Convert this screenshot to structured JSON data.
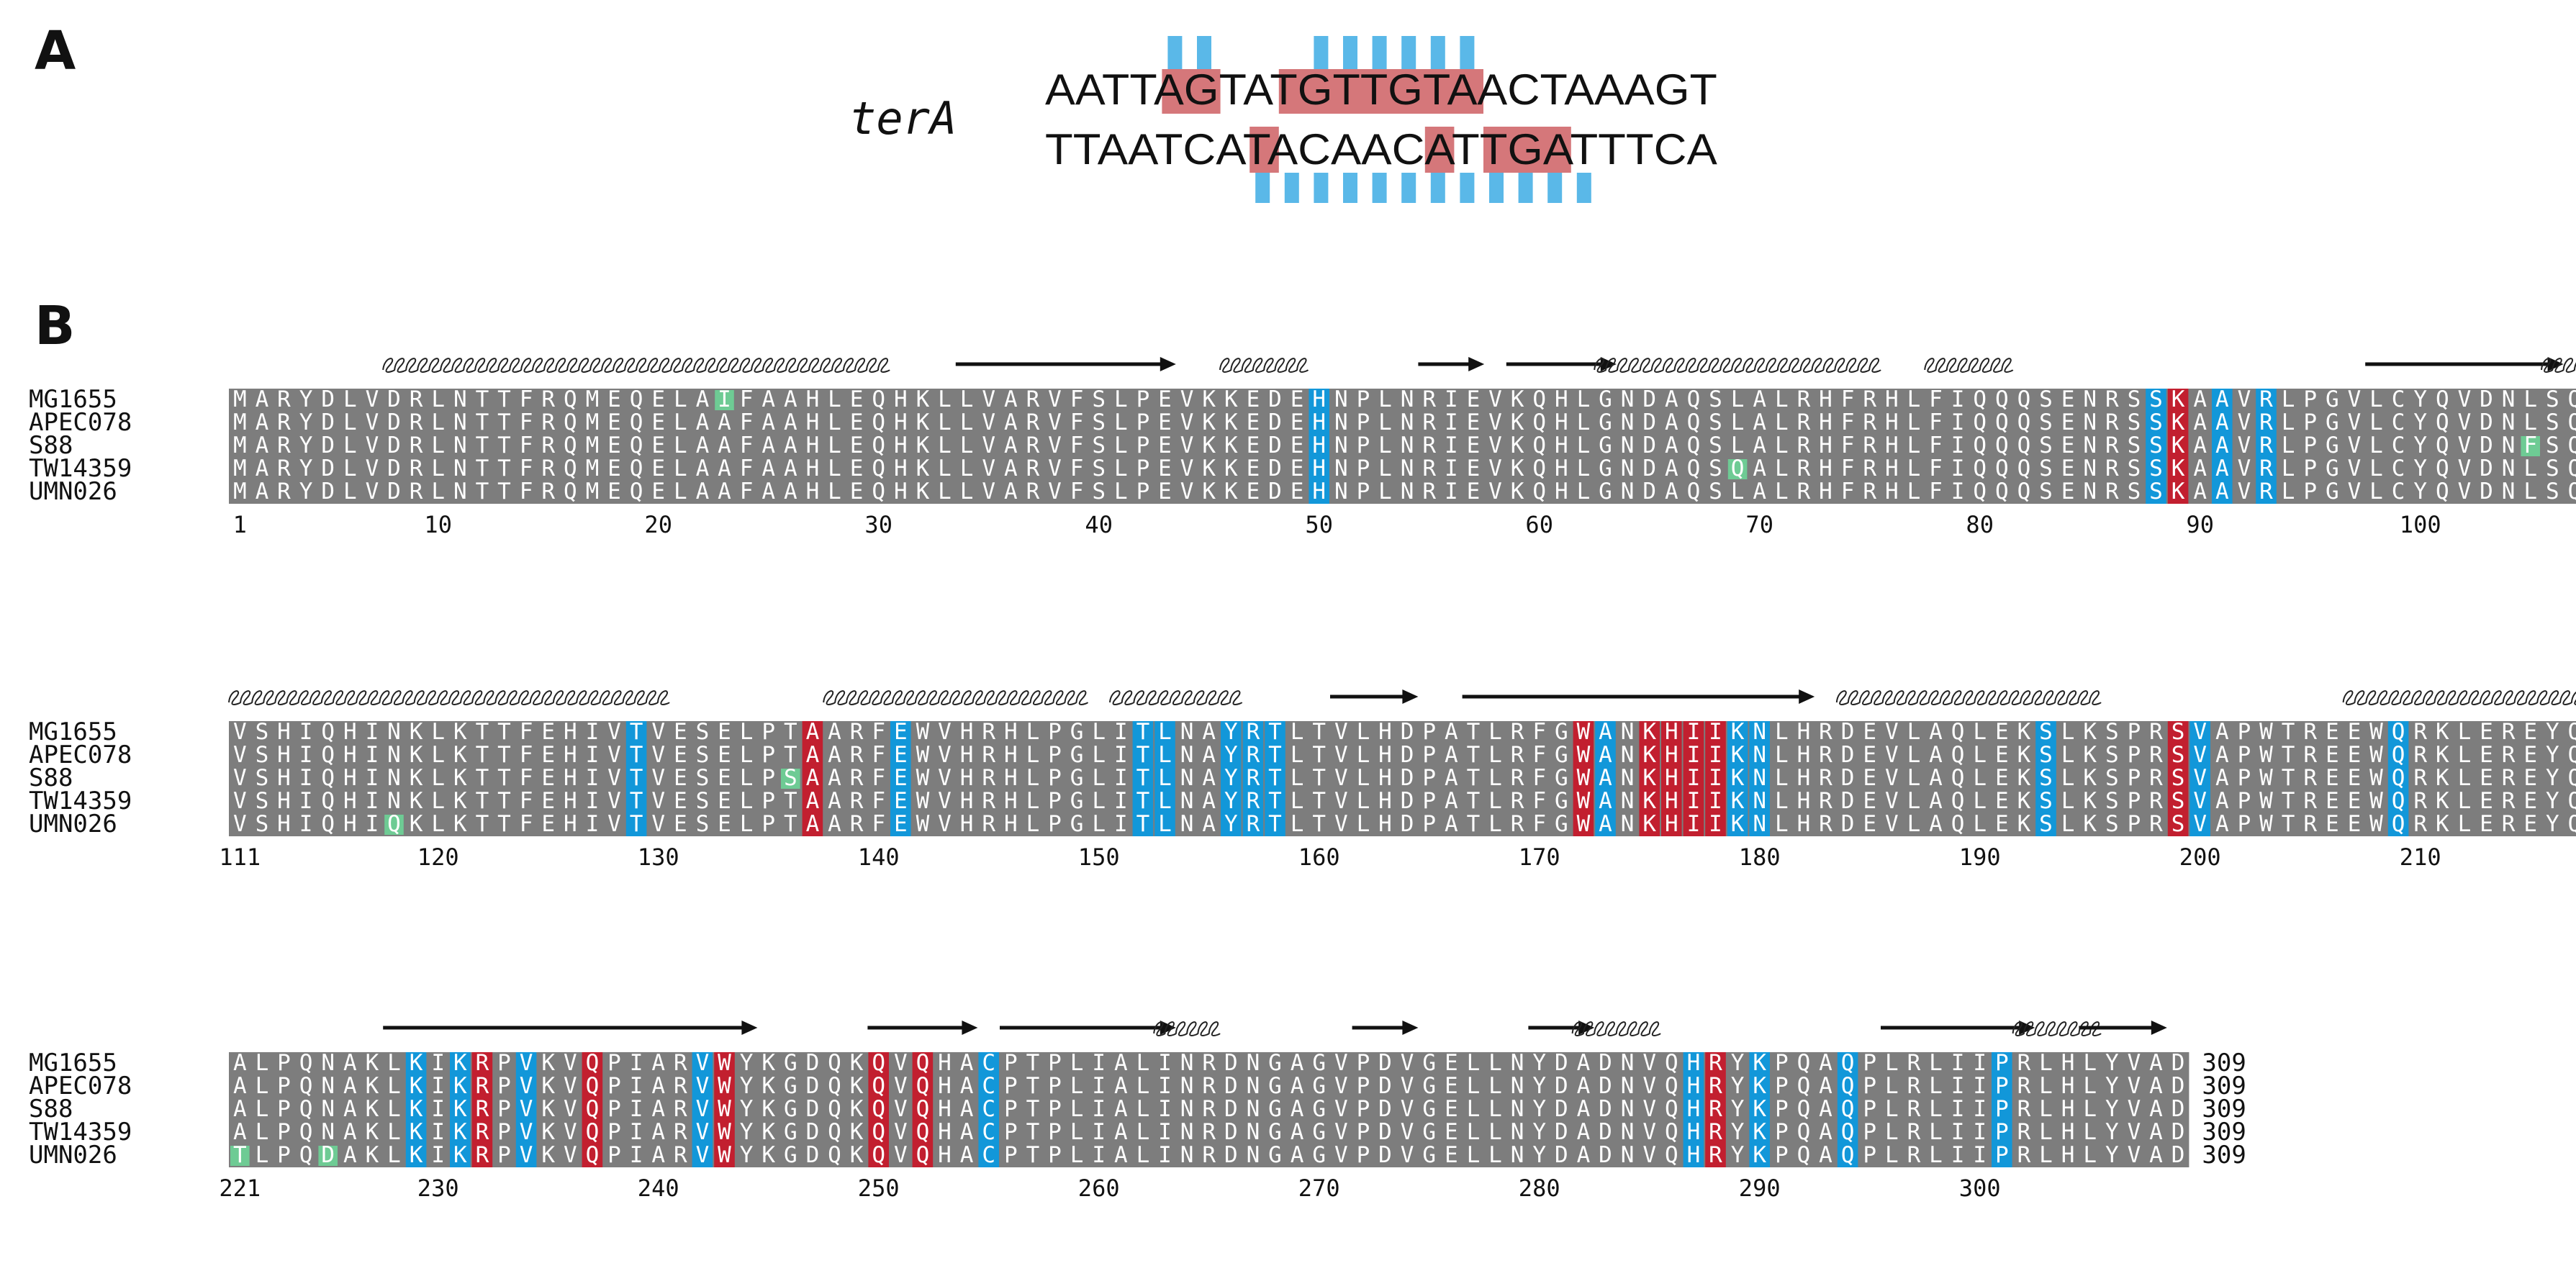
{
  "panel_a": {
    "label": "A",
    "gene_label": "terA",
    "top_strand": "AATTAGTATGTTGTAACTAAAGT",
    "bottom_strand": "TTAATCATACAACATTGATTTCA",
    "top_highlight_ranges": [
      [
        4,
        6
      ],
      [
        8,
        15
      ]
    ],
    "bottom_highlight_ranges": [
      [
        7,
        8
      ],
      [
        13,
        14
      ],
      [
        15,
        18
      ]
    ],
    "top_bar_positions": [
      4,
      5,
      9,
      10,
      11,
      12,
      13,
      14
    ],
    "bottom_bar_positions": [
      7,
      8,
      9,
      10,
      11,
      12,
      13,
      14,
      15,
      16,
      17,
      18
    ],
    "colors": {
      "highlight": "#d5777a",
      "bar": "#5ab8e8"
    }
  },
  "panel_b": {
    "label": "B",
    "colors": {
      "background": "#7d7d7d",
      "conserved_blue": "#1297d9",
      "conserved_red": "#c21f2f",
      "variant_green": "#6ecb94",
      "residue_text": "#ffffff",
      "variant_text": "#1a5a34"
    },
    "blocks": [
      {
        "start": 1,
        "end_label": "110",
        "ruler": [
          "1",
          "10",
          "20",
          "30",
          "40",
          "50",
          "60",
          "70",
          "80",
          "90",
          "100"
        ],
        "secondary_structure": [
          {
            "type": "helix",
            "from": 8,
            "to": 30
          },
          {
            "type": "strand",
            "from": 34,
            "to": 43
          },
          {
            "type": "helix",
            "from": 46,
            "to": 49
          },
          {
            "type": "strand",
            "from": 55,
            "to": 57
          },
          {
            "type": "strand",
            "from": 59,
            "to": 63
          },
          {
            "type": "helix",
            "from": 63,
            "to": 75
          },
          {
            "type": "helix",
            "from": 78,
            "to": 81
          },
          {
            "type": "strand",
            "from": 98,
            "to": 106
          },
          {
            "type": "helix",
            "from": 106,
            "to": 110
          }
        ],
        "columns": [
          {
            "pos": 50,
            "color": "blue"
          },
          {
            "pos": 88,
            "color": "blue"
          },
          {
            "pos": 89,
            "color": "red"
          },
          {
            "pos": 91,
            "color": "blue"
          },
          {
            "pos": 93,
            "color": "blue"
          }
        ],
        "sequences": [
          {
            "name": "MG1655",
            "residues": "MARYDLVDRLNTTFRQMEQELAIFAAHLEQHKLLVARVFSLPEVKKEDEHNPLNRIEVKQHLGNDAQSLALRHFRHLFIQQQSENRSSKAAVRLPGVLCYQVDNLSQAAL",
            "variants": [
              23
            ]
          },
          {
            "name": "APEC078",
            "residues": "MARYDLVDRLNTTFRQMEQELAAFAAHLEQHKLLVARVFSLPEVKKEDEHNPLNRIEVKQHLGNDAQSLALRHFRHLFIQQQSENRSSKAAVRLPGVLCYQVDNLSQAAL",
            "variants": []
          },
          {
            "name": "S88",
            "residues": "MARYDLVDRLNTTFRQMEQELAAFAAHLEQHKLLVARVFSLPEVKKEDEHNPLNRIEVKQHLGNDAQSLALRHFRHLFIQQQSENRSSKAAVRLPGVLCYQVDNFSQAAL",
            "variants": [
              105
            ]
          },
          {
            "name": "TW14359",
            "residues": "MARYDLVDRLNTTFRQMEQELAAFAAHLEQHKLLVARVFSLPEVKKEDEHNPLNRIEVKQHLGNDAQSQALRHFRHLFIQQQSENRSSKAAVRLPGVLCYQVDNLSQAAL",
            "variants": [
              69
            ]
          },
          {
            "name": "UMN026",
            "residues": "MARYDLVDRLNTTFRQMEQELAAFAAHLEQHKLLVARVFSLPEVKKEDEHNPLNRIEVKQHLGNDAQSLALRHFRHLFIQQQSENRSSKAAVRLPGVLCYQVDNLSQAAL",
            "variants": []
          }
        ]
      },
      {
        "start": 111,
        "end_label": "220",
        "ruler": [
          "111",
          "120",
          "130",
          "140",
          "150",
          "160",
          "170",
          "180",
          "190",
          "200",
          "210"
        ],
        "secondary_structure": [
          {
            "type": "helix",
            "from": 111,
            "to": 130
          },
          {
            "type": "helix",
            "from": 138,
            "to": 149
          },
          {
            "type": "helix",
            "from": 151,
            "to": 156
          },
          {
            "type": "strand",
            "from": 161,
            "to": 164
          },
          {
            "type": "strand",
            "from": 167,
            "to": 182
          },
          {
            "type": "helix",
            "from": 184,
            "to": 195
          },
          {
            "type": "helix",
            "from": 207,
            "to": 220
          }
        ],
        "columns": [
          {
            "pos": 129,
            "color": "blue"
          },
          {
            "pos": 137,
            "color": "red"
          },
          {
            "pos": 141,
            "color": "blue"
          },
          {
            "pos": 152,
            "color": "blue"
          },
          {
            "pos": 153,
            "color": "blue"
          },
          {
            "pos": 156,
            "color": "blue"
          },
          {
            "pos": 157,
            "color": "blue"
          },
          {
            "pos": 158,
            "color": "blue"
          },
          {
            "pos": 172,
            "color": "red"
          },
          {
            "pos": 173,
            "color": "blue"
          },
          {
            "pos": 175,
            "color": "red"
          },
          {
            "pos": 176,
            "color": "red"
          },
          {
            "pos": 177,
            "color": "red"
          },
          {
            "pos": 178,
            "color": "red"
          },
          {
            "pos": 179,
            "color": "blue"
          },
          {
            "pos": 180,
            "color": "blue"
          },
          {
            "pos": 193,
            "color": "blue"
          },
          {
            "pos": 199,
            "color": "red"
          },
          {
            "pos": 200,
            "color": "blue"
          },
          {
            "pos": 209,
            "color": "blue"
          }
        ],
        "sequences": [
          {
            "name": "MG1655",
            "residues": "VSHIQHINKLKTTFEHIVTVESELPTAARFEWVHRHLPGLITLNAYRTLTVLHDPATLRFGWANKHIIKNLHRDEVLAQLEKSLKSPRSVAPWTREEWQRKLEREYQDIA",
            "variants": []
          },
          {
            "name": "APEC078",
            "residues": "VSHIQHINKLKTTFEHIVTVESELPTAARFEWVHRHLPGLITLNAYRTLTVLHDPATLRFGWANKHIIKNLHRDEVLAQLEKSLKSPRSVAPWTREEWQRKLEREYQDIA",
            "variants": []
          },
          {
            "name": "S88",
            "residues": "VSHIQHINKLKTTFEHIVTVESELPSAARFEWVHRHLPGLITLNAYRTLTVLHDPATLRFGWANKHIIKNLHRDEVLAQLEKSLKSPRSVAPWTREEWQRKLEREYQDIA",
            "variants": [
              136
            ]
          },
          {
            "name": "TW14359",
            "residues": "VSHIQHINKLKTTFEHIVTVESELPTAARFEWVHRHLPGLITLNAYRTLTVLHDPATLRFGWANKHIIKNLHRDEVLAQLEKSLKSPRSVAPWTREEWQRKLEREYQDIA",
            "variants": []
          },
          {
            "name": "UMN026",
            "residues": "VSHIQHIQKLKTTFEHIVTVESELPTAARFEWVHRHLPGLITLNAYRTLTVLHDPATLRFGWANKHIIKNLHRDEVLAQLEKSLKSPRSVAPWTREEWQRKLEREYQDIA",
            "variants": [
              118
            ]
          }
        ]
      },
      {
        "start": 221,
        "end_label": "309",
        "ruler": [
          "221",
          "230",
          "240",
          "250",
          "260",
          "270",
          "280",
          "290",
          "300"
        ],
        "secondary_structure": [
          {
            "type": "strand",
            "from": 228,
            "to": 244
          },
          {
            "type": "strand",
            "from": 250,
            "to": 254
          },
          {
            "type": "strand",
            "from": 256,
            "to": 263
          },
          {
            "type": "helix",
            "from": 263,
            "to": 265
          },
          {
            "type": "strand",
            "from": 272,
            "to": 274
          },
          {
            "type": "strand",
            "from": 280,
            "to": 282
          },
          {
            "type": "helix",
            "from": 282,
            "to": 285
          },
          {
            "type": "strand",
            "from": 296,
            "to": 302
          },
          {
            "type": "helix",
            "from": 302,
            "to": 305
          },
          {
            "type": "strand",
            "from": 305,
            "to": 308
          }
        ],
        "columns": [
          {
            "pos": 229,
            "color": "blue"
          },
          {
            "pos": 231,
            "color": "blue"
          },
          {
            "pos": 232,
            "color": "red"
          },
          {
            "pos": 234,
            "color": "blue"
          },
          {
            "pos": 237,
            "color": "red"
          },
          {
            "pos": 242,
            "color": "blue"
          },
          {
            "pos": 243,
            "color": "red"
          },
          {
            "pos": 250,
            "color": "red"
          },
          {
            "pos": 252,
            "color": "red"
          },
          {
            "pos": 255,
            "color": "blue"
          },
          {
            "pos": 287,
            "color": "blue"
          },
          {
            "pos": 288,
            "color": "red"
          },
          {
            "pos": 290,
            "color": "blue"
          },
          {
            "pos": 294,
            "color": "blue"
          },
          {
            "pos": 301,
            "color": "blue"
          }
        ],
        "sequences": [
          {
            "name": "MG1655",
            "residues": "ALPQNAKLKIKRPVKVQPIARVWYKGDQKQVQHACPTPLIALINRDNGAGVPDVGELLNYDADNVQHRYKPQAQPLRLIIPRLHLYVAD",
            "variants": []
          },
          {
            "name": "APEC078",
            "residues": "ALPQNAKLKIKRPVKVQPIARVWYKGDQKQVQHACPTPLIALINRDNGAGVPDVGELLNYDADNVQHRYKPQAQPLRLIIPRLHLYVAD",
            "variants": []
          },
          {
            "name": "S88",
            "residues": "ALPQNAKLKIKRPVKVQPIARVWYKGDQKQVQHACPTPLIALINRDNGAGVPDVGELLNYDADNVQHRYKPQAQPLRLIIPRLHLYVAD",
            "variants": []
          },
          {
            "name": "TW14359",
            "residues": "ALPQNAKLKIKRPVKVQPIARVWYKGDQKQVQHACPTPLIALINRDNGAGVPDVGELLNYDADNVQHRYKPQAQPLRLIIPRLHLYVAD",
            "variants": []
          },
          {
            "name": "UMN026",
            "residues": "TLPQDAKLKIKRPVKVQPIARVWYKGDQKQVQHACPTPLIALINRDNGAGVPDVGELLNYDADNVQHRYKPQAQPLRLIIPRLHLYVAD",
            "variants": [
              221,
              225
            ]
          }
        ]
      }
    ]
  }
}
